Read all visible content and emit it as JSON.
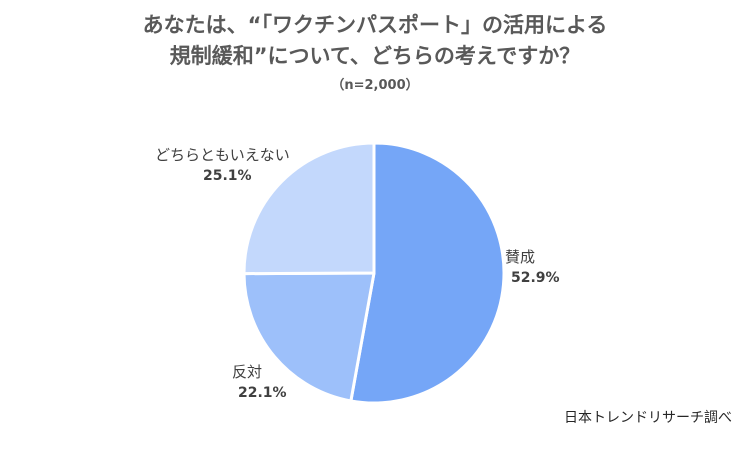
{
  "title_line1": "あなたは、“「ワクチンパスポート」の活用による",
  "title_line2": "規制緩和”について、どちらの考えですか？",
  "subtitle": "（n=2,000）",
  "source": "日本トレンドリサーチ調べ",
  "chart_data": {
    "type": "pie",
    "title": "あなたは、“「ワクチンパスポート」の活用による規制緩和”について、どちらの考えですか？",
    "subtitle": "（n=2,000）",
    "unit": "%",
    "slices": [
      {
        "label": "賛成",
        "value": 52.9,
        "value_label": "52.9%",
        "color": "#75a6f7"
      },
      {
        "label": "反対",
        "value": 22.1,
        "value_label": "22.1%",
        "color": "#9dc0fa"
      },
      {
        "label": "どちらともいえない",
        "value": 25.1,
        "value_label": "25.1%",
        "color": "#c3d8fc"
      }
    ],
    "start_angle": "12 o'clock",
    "direction": "clockwise",
    "slice_border_color": "#ffffff"
  }
}
